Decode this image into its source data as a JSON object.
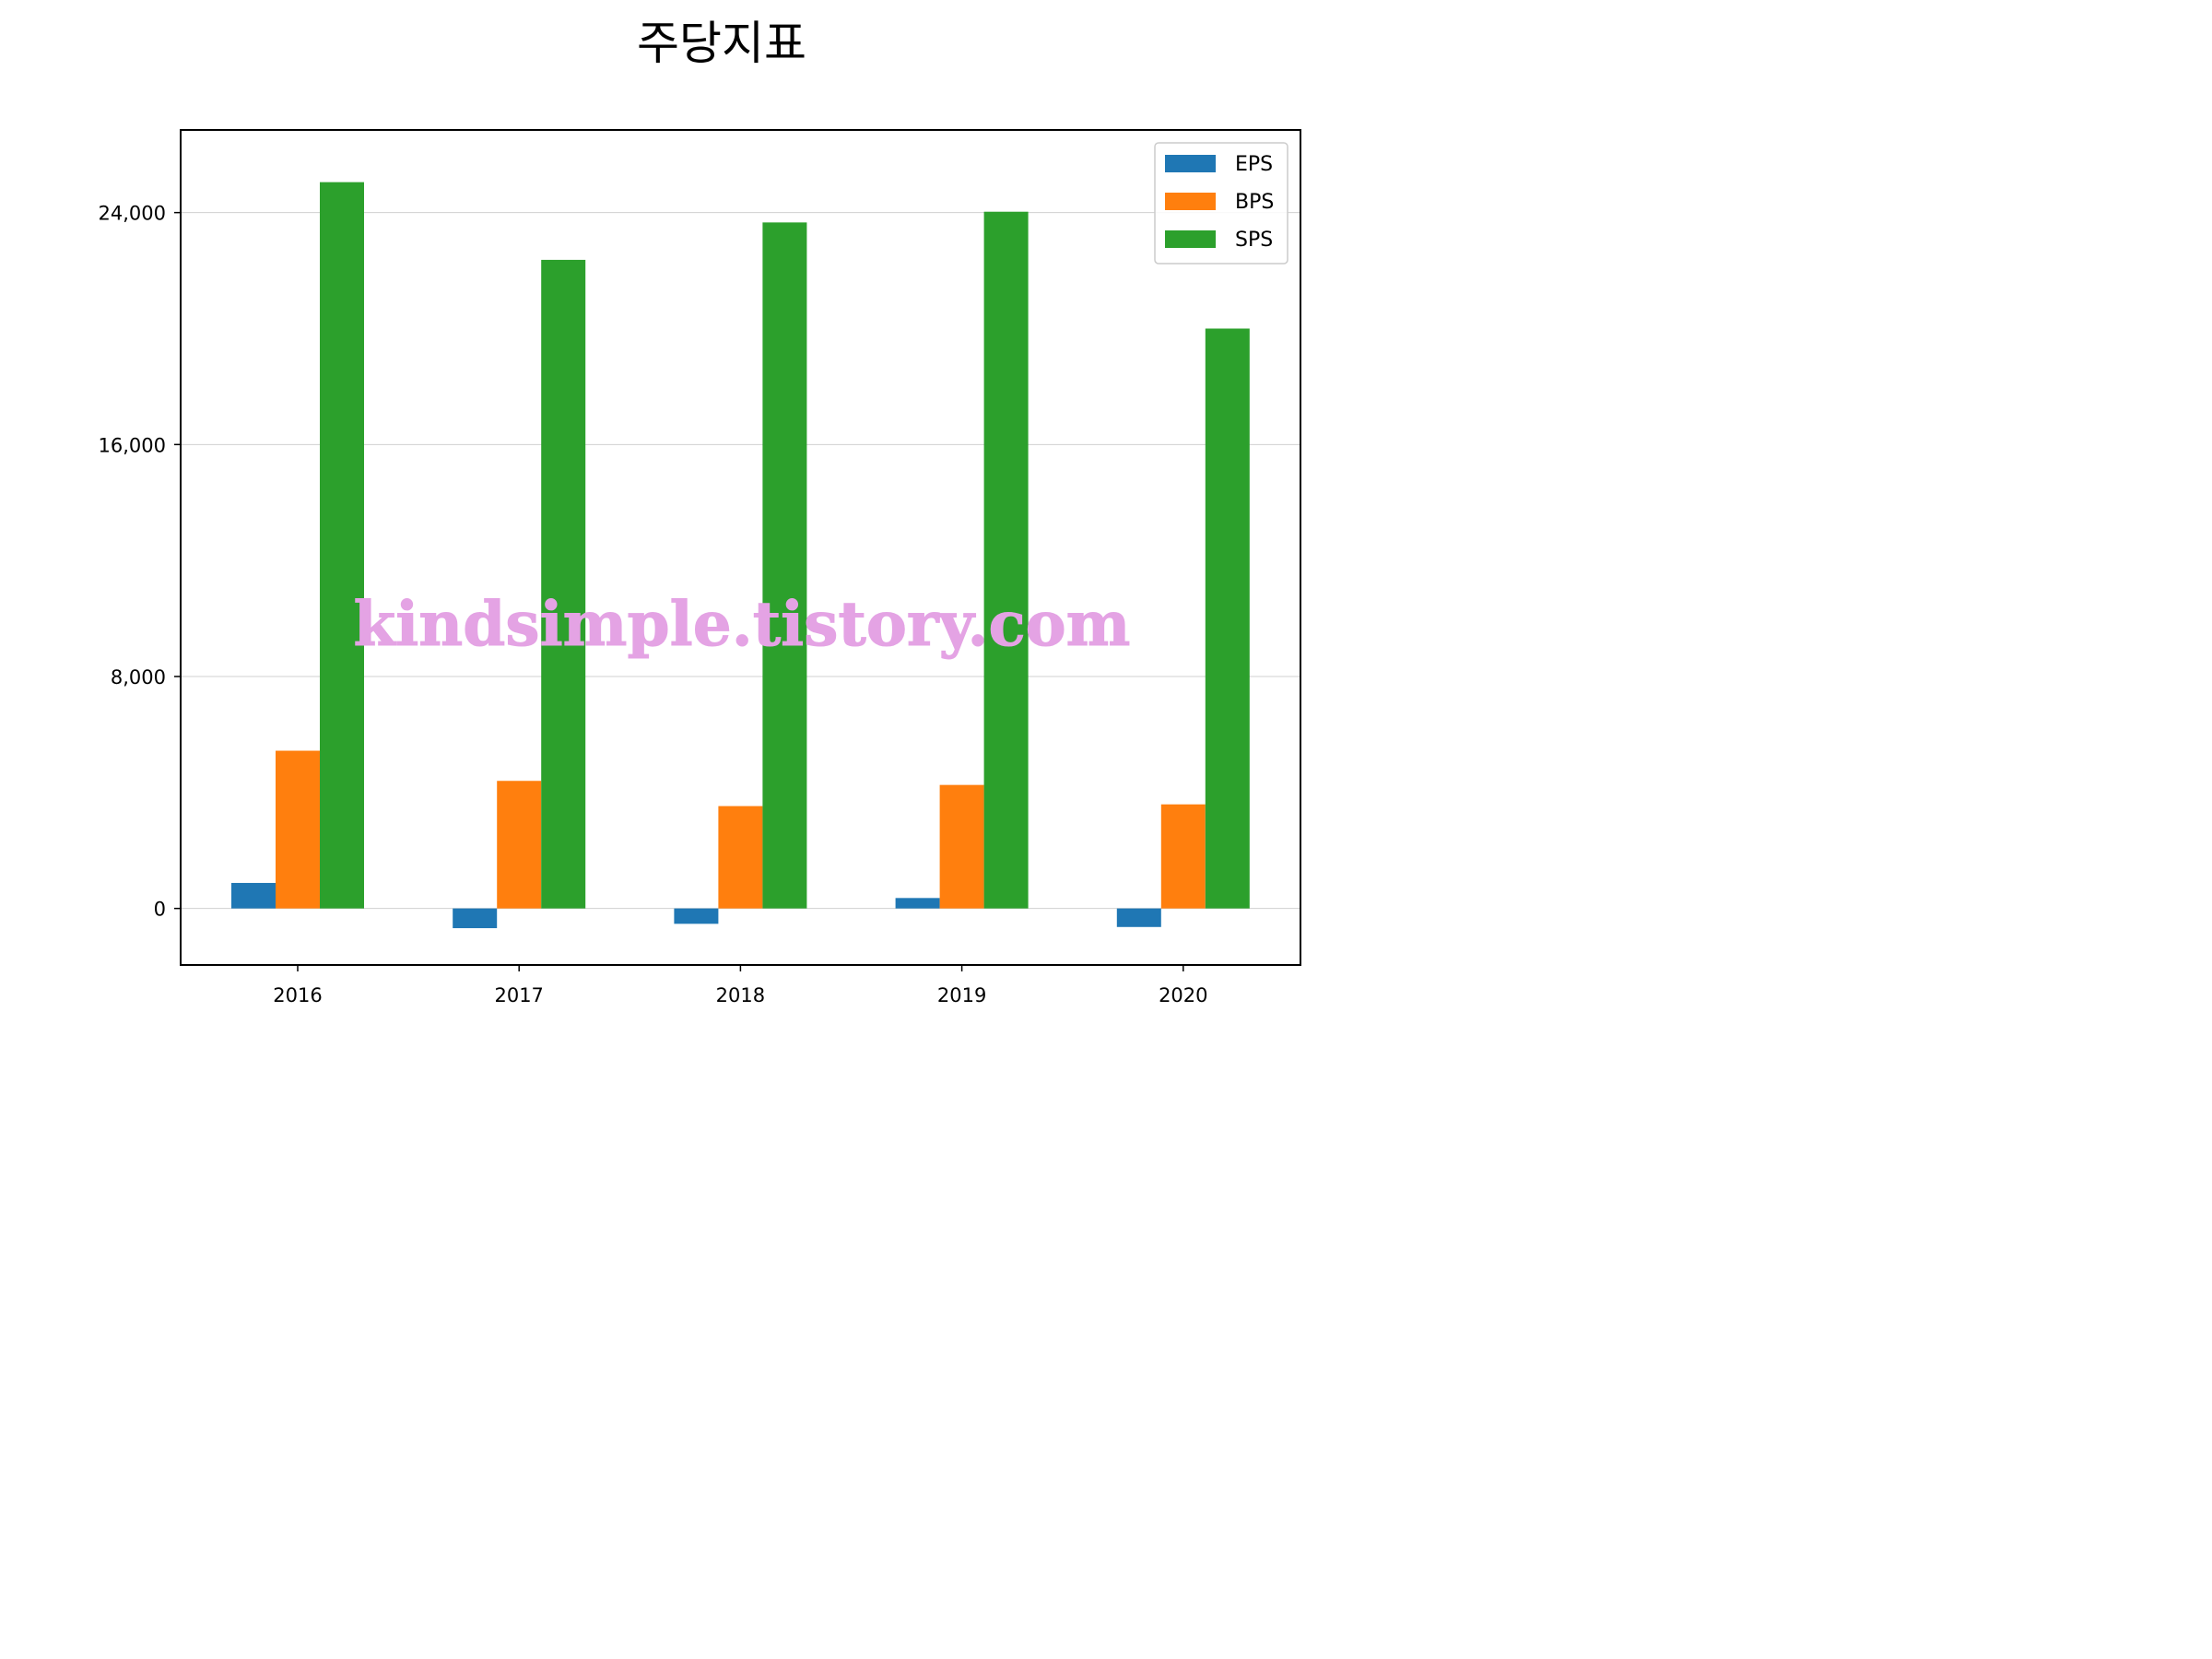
{
  "chart_data": {
    "type": "bar",
    "title": "주당지표",
    "xlabel": "",
    "ylabel": "",
    "categories": [
      "2016",
      "2017",
      "2018",
      "2019",
      "2020"
    ],
    "series": [
      {
        "name": "EPS",
        "color": "#1f77b4",
        "values": [
          880,
          -680,
          -530,
          360,
          -640
        ]
      },
      {
        "name": "BPS",
        "color": "#ff7f0e",
        "values": [
          5440,
          4400,
          3530,
          4260,
          3590
        ]
      },
      {
        "name": "SPS",
        "color": "#2ca02c",
        "values": [
          25050,
          22370,
          23660,
          24030,
          20000
        ]
      }
    ],
    "ylim": [
      -1950,
      26850
    ],
    "yticks": [
      0,
      8000,
      16000,
      24000
    ],
    "ytick_labels": [
      "0",
      "8,000",
      "16,000",
      "24,000"
    ],
    "grid": "horizontal",
    "legend_position": "top-right",
    "watermark": "kindsimple.tistory.com"
  }
}
